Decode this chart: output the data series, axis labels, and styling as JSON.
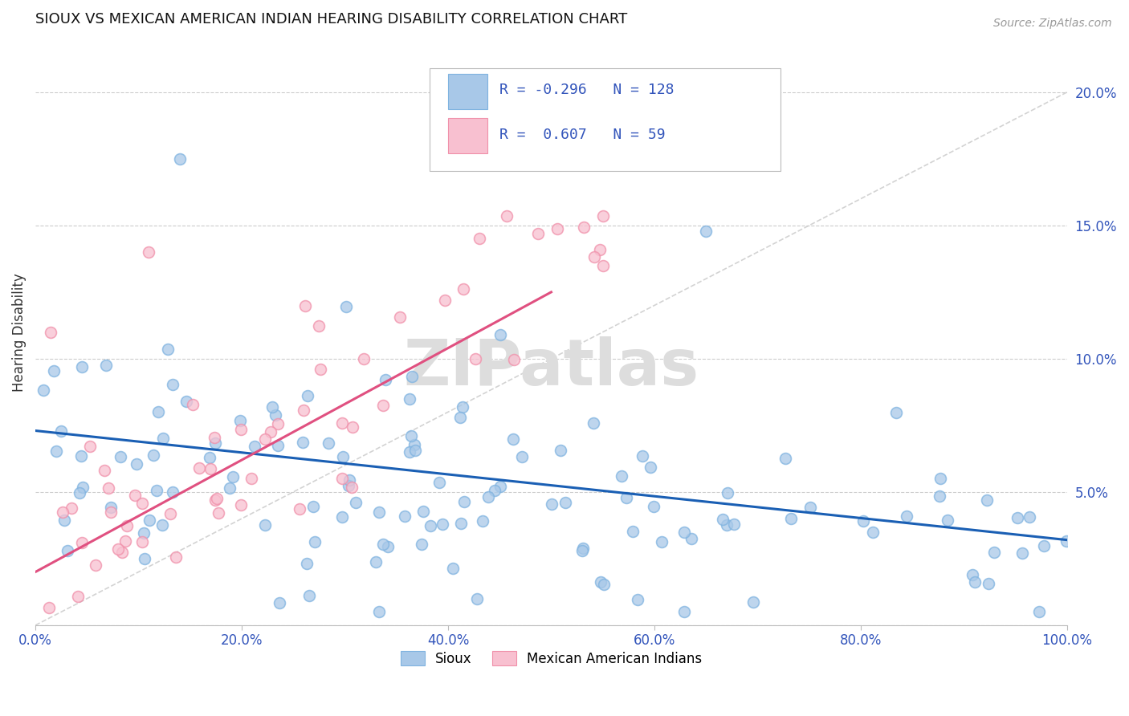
{
  "title": "SIOUX VS MEXICAN AMERICAN INDIAN HEARING DISABILITY CORRELATION CHART",
  "source": "Source: ZipAtlas.com",
  "ylabel": "Hearing Disability",
  "xlim": [
    0,
    1.0
  ],
  "ylim": [
    0,
    0.22
  ],
  "xtick_vals": [
    0.0,
    0.2,
    0.4,
    0.6,
    0.8,
    1.0
  ],
  "xtick_labels": [
    "0.0%",
    "20.0%",
    "40.0%",
    "60.0%",
    "80.0%",
    "100.0%"
  ],
  "ytick_vals": [
    0.0,
    0.05,
    0.1,
    0.15,
    0.2
  ],
  "ytick_labels": [
    "",
    "5.0%",
    "10.0%",
    "15.0%",
    "20.0%"
  ],
  "sioux_color": "#a8c8e8",
  "sioux_edge_color": "#7fb3e0",
  "mexican_color": "#f8c0d0",
  "mexican_edge_color": "#f090aa",
  "trend_sioux_color": "#1a5fb4",
  "trend_mexican_color": "#e05080",
  "diagonal_color": "#c8c8c8",
  "sioux_R": -0.296,
  "sioux_N": 128,
  "mexican_R": 0.607,
  "mexican_N": 59,
  "legend_label_sioux": "Sioux",
  "legend_label_mexican": "Mexican American Indians",
  "background_color": "#ffffff",
  "sioux_trend_x0": 0.0,
  "sioux_trend_y0": 0.073,
  "sioux_trend_x1": 1.0,
  "sioux_trend_y1": 0.032,
  "mexican_trend_x0": 0.0,
  "mexican_trend_y0": 0.02,
  "mexican_trend_x1": 0.5,
  "mexican_trend_y1": 0.125
}
